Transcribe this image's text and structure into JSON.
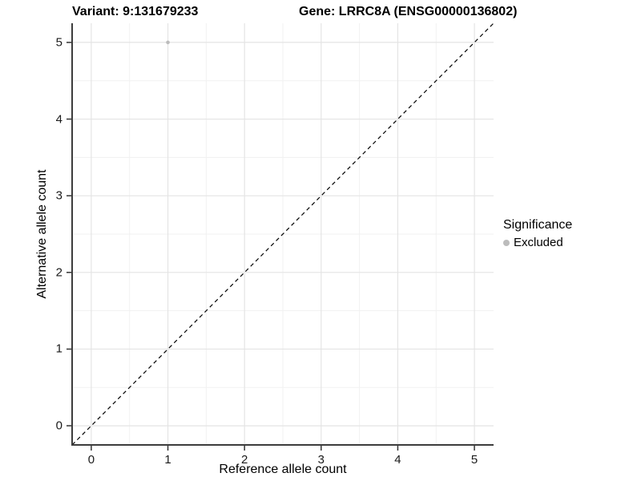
{
  "titles": {
    "variant": "Variant: 9:131679233",
    "gene": "Gene: LRRC8A (ENSG00000136802)"
  },
  "legend": {
    "title": "Significance",
    "items": [
      {
        "label": "Excluded",
        "color": "#bcbcbc"
      }
    ]
  },
  "chart_data": {
    "type": "scatter",
    "titles": [
      "Variant: 9:131679233",
      "Gene: LRRC8A (ENSG00000136802)"
    ],
    "xlabel": "Reference allele count",
    "ylabel": "Alternative allele count",
    "xlim": [
      -0.25,
      5.25
    ],
    "ylim": [
      -0.25,
      5.25
    ],
    "x_ticks": [
      0,
      1,
      2,
      3,
      4,
      5
    ],
    "y_ticks": [
      0,
      1,
      2,
      3,
      4,
      5
    ],
    "grid": "major and minor on, white panel",
    "legend_position": "right",
    "series": [
      {
        "name": "Excluded",
        "color": "#bcbcbc",
        "points": [
          {
            "x": 1,
            "y": 5
          }
        ]
      }
    ],
    "reference_line": {
      "type": "identity y=x",
      "style": "dashed",
      "color": "#000000"
    }
  },
  "colors": {
    "background": "#ffffff",
    "grid_major": "#e4e4e4",
    "grid_minor": "#f1f1f1",
    "axis_line": "#3d3d3d",
    "tick_mark": "#333333",
    "point": "#bcbcbc",
    "reference_line": "#000000"
  }
}
